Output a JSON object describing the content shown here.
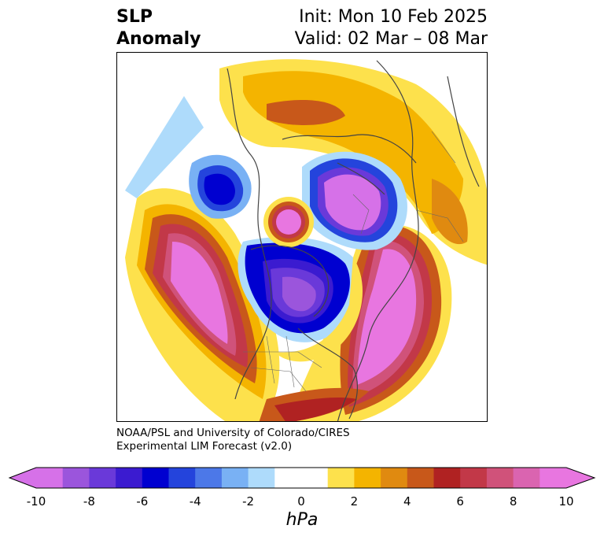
{
  "title": {
    "variable_line1": "SLP",
    "variable_line2": "Anomaly",
    "init": "Init: Mon 10 Feb 2025",
    "valid": "Valid: 02 Mar – 08 Mar"
  },
  "credit": {
    "line1": "NOAA/PSL and University of Colorado/CIRES",
    "line2": "Experimental LIM Forecast (v2.0)"
  },
  "colorbar": {
    "unit": "hPa",
    "ticks": [
      "-10",
      "-8",
      "-6",
      "-4",
      "-2",
      "0",
      "2",
      "4",
      "6",
      "8",
      "10"
    ],
    "colors": [
      "#d671e8",
      "#9b55dc",
      "#6a39d9",
      "#3b1bd0",
      "#0000d0",
      "#2444dc",
      "#4c78e8",
      "#79b1f4",
      "#aedbfb",
      "#ffffff",
      "#ffffff",
      "#fde14c",
      "#f4b400",
      "#e08a10",
      "#c8581a",
      "#b02222",
      "#c23848",
      "#d0527a",
      "#da64b0",
      "#e876e0"
    ]
  }
}
